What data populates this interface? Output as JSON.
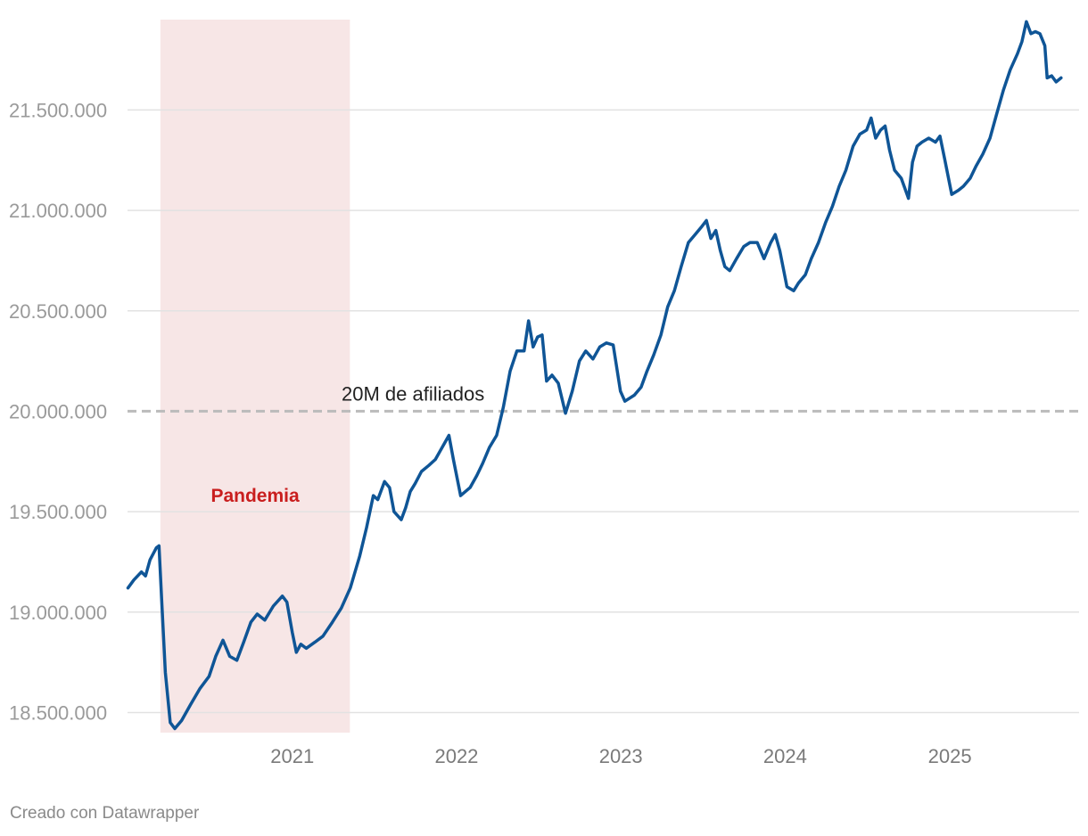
{
  "chart_data": {
    "type": "line",
    "title": "",
    "xlabel": "",
    "ylabel": "",
    "xlim": [
      "2020-01-01",
      "2025-10-15"
    ],
    "ylim": [
      18400000,
      21950000
    ],
    "y_ticks": [
      18500000,
      19000000,
      19500000,
      20000000,
      20500000,
      21000000,
      21500000
    ],
    "y_tick_labels": [
      "18.500.000",
      "19.000.000",
      "19.500.000",
      "20.000.000",
      "20.500.000",
      "21.000.000",
      "21.500.000"
    ],
    "x_ticks": [
      "2021-01-01",
      "2022-01-01",
      "2023-01-01",
      "2024-01-01",
      "2025-01-01"
    ],
    "x_tick_labels": [
      "2021",
      "2022",
      "2023",
      "2024",
      "2025"
    ],
    "grid": true,
    "shaded_region": {
      "label": "Pandemia",
      "start": "2020-03-14",
      "end": "2021-05-09",
      "color": "#f7e6e6",
      "label_color": "#c91e1e"
    },
    "reference_line": {
      "value": 20000000,
      "label": "20M de afiliados",
      "color": "#bbbbbb"
    },
    "series": [
      {
        "color": "#0f5596",
        "points": [
          [
            "2020-01-02",
            19120000
          ],
          [
            "2020-01-15",
            19160000
          ],
          [
            "2020-02-01",
            19200000
          ],
          [
            "2020-02-10",
            19180000
          ],
          [
            "2020-02-20",
            19260000
          ],
          [
            "2020-03-05",
            19320000
          ],
          [
            "2020-03-11",
            19330000
          ],
          [
            "2020-03-17",
            19050000
          ],
          [
            "2020-03-25",
            18700000
          ],
          [
            "2020-04-05",
            18450000
          ],
          [
            "2020-04-15",
            18420000
          ],
          [
            "2020-04-30",
            18460000
          ],
          [
            "2020-05-20",
            18540000
          ],
          [
            "2020-06-10",
            18620000
          ],
          [
            "2020-06-30",
            18680000
          ],
          [
            "2020-07-15",
            18780000
          ],
          [
            "2020-07-31",
            18860000
          ],
          [
            "2020-08-15",
            18780000
          ],
          [
            "2020-08-31",
            18760000
          ],
          [
            "2020-09-15",
            18850000
          ],
          [
            "2020-10-01",
            18950000
          ],
          [
            "2020-10-15",
            18990000
          ],
          [
            "2020-11-01",
            18960000
          ],
          [
            "2020-11-20",
            19030000
          ],
          [
            "2020-12-10",
            19080000
          ],
          [
            "2020-12-20",
            19050000
          ],
          [
            "2021-01-01",
            18900000
          ],
          [
            "2021-01-10",
            18800000
          ],
          [
            "2021-01-20",
            18840000
          ],
          [
            "2021-02-01",
            18820000
          ],
          [
            "2021-02-20",
            18850000
          ],
          [
            "2021-03-10",
            18880000
          ],
          [
            "2021-03-31",
            18950000
          ],
          [
            "2021-04-20",
            19020000
          ],
          [
            "2021-05-10",
            19120000
          ],
          [
            "2021-05-31",
            19280000
          ],
          [
            "2021-06-15",
            19420000
          ],
          [
            "2021-06-30",
            19580000
          ],
          [
            "2021-07-10",
            19560000
          ],
          [
            "2021-07-25",
            19650000
          ],
          [
            "2021-08-05",
            19620000
          ],
          [
            "2021-08-15",
            19500000
          ],
          [
            "2021-08-31",
            19460000
          ],
          [
            "2021-09-10",
            19520000
          ],
          [
            "2021-09-20",
            19600000
          ],
          [
            "2021-10-01",
            19640000
          ],
          [
            "2021-10-15",
            19700000
          ],
          [
            "2021-10-31",
            19730000
          ],
          [
            "2021-11-15",
            19760000
          ],
          [
            "2021-11-30",
            19820000
          ],
          [
            "2021-12-15",
            19880000
          ],
          [
            "2021-12-25",
            19760000
          ],
          [
            "2022-01-10",
            19580000
          ],
          [
            "2022-01-31",
            19620000
          ],
          [
            "2022-02-15",
            19680000
          ],
          [
            "2022-02-28",
            19740000
          ],
          [
            "2022-03-15",
            19820000
          ],
          [
            "2022-03-31",
            19880000
          ],
          [
            "2022-04-15",
            20020000
          ],
          [
            "2022-04-30",
            20200000
          ],
          [
            "2022-05-15",
            20300000
          ],
          [
            "2022-05-31",
            20300000
          ],
          [
            "2022-06-10",
            20450000
          ],
          [
            "2022-06-20",
            20320000
          ],
          [
            "2022-06-30",
            20370000
          ],
          [
            "2022-07-10",
            20380000
          ],
          [
            "2022-07-20",
            20150000
          ],
          [
            "2022-08-01",
            20180000
          ],
          [
            "2022-08-15",
            20140000
          ],
          [
            "2022-08-31",
            19990000
          ],
          [
            "2022-09-15",
            20100000
          ],
          [
            "2022-10-01",
            20250000
          ],
          [
            "2022-10-15",
            20300000
          ],
          [
            "2022-10-31",
            20260000
          ],
          [
            "2022-11-15",
            20320000
          ],
          [
            "2022-11-30",
            20340000
          ],
          [
            "2022-12-15",
            20330000
          ],
          [
            "2022-12-31",
            20100000
          ],
          [
            "2023-01-10",
            20050000
          ],
          [
            "2023-01-31",
            20080000
          ],
          [
            "2023-02-15",
            20120000
          ],
          [
            "2023-02-28",
            20200000
          ],
          [
            "2023-03-15",
            20280000
          ],
          [
            "2023-03-31",
            20380000
          ],
          [
            "2023-04-15",
            20520000
          ],
          [
            "2023-04-30",
            20600000
          ],
          [
            "2023-05-15",
            20720000
          ],
          [
            "2023-05-31",
            20840000
          ],
          [
            "2023-06-15",
            20880000
          ],
          [
            "2023-06-30",
            20920000
          ],
          [
            "2023-07-10",
            20950000
          ],
          [
            "2023-07-20",
            20860000
          ],
          [
            "2023-07-31",
            20900000
          ],
          [
            "2023-08-10",
            20800000
          ],
          [
            "2023-08-20",
            20720000
          ],
          [
            "2023-08-31",
            20700000
          ],
          [
            "2023-09-15",
            20760000
          ],
          [
            "2023-10-01",
            20820000
          ],
          [
            "2023-10-15",
            20840000
          ],
          [
            "2023-10-31",
            20840000
          ],
          [
            "2023-11-15",
            20760000
          ],
          [
            "2023-11-30",
            20840000
          ],
          [
            "2023-12-10",
            20880000
          ],
          [
            "2023-12-20",
            20800000
          ],
          [
            "2024-01-05",
            20620000
          ],
          [
            "2024-01-20",
            20600000
          ],
          [
            "2024-01-31",
            20640000
          ],
          [
            "2024-02-15",
            20680000
          ],
          [
            "2024-02-28",
            20760000
          ],
          [
            "2024-03-15",
            20840000
          ],
          [
            "2024-03-31",
            20940000
          ],
          [
            "2024-04-15",
            21020000
          ],
          [
            "2024-04-30",
            21120000
          ],
          [
            "2024-05-15",
            21200000
          ],
          [
            "2024-05-31",
            21320000
          ],
          [
            "2024-06-15",
            21380000
          ],
          [
            "2024-06-30",
            21400000
          ],
          [
            "2024-07-10",
            21460000
          ],
          [
            "2024-07-20",
            21360000
          ],
          [
            "2024-07-31",
            21400000
          ],
          [
            "2024-08-10",
            21420000
          ],
          [
            "2024-08-20",
            21300000
          ],
          [
            "2024-08-31",
            21200000
          ],
          [
            "2024-09-15",
            21160000
          ],
          [
            "2024-10-01",
            21060000
          ],
          [
            "2024-10-10",
            21240000
          ],
          [
            "2024-10-20",
            21320000
          ],
          [
            "2024-10-31",
            21340000
          ],
          [
            "2024-11-15",
            21360000
          ],
          [
            "2024-11-30",
            21340000
          ],
          [
            "2024-12-10",
            21370000
          ],
          [
            "2024-12-20",
            21260000
          ],
          [
            "2025-01-05",
            21080000
          ],
          [
            "2025-01-20",
            21100000
          ],
          [
            "2025-01-31",
            21120000
          ],
          [
            "2025-02-15",
            21160000
          ],
          [
            "2025-02-28",
            21220000
          ],
          [
            "2025-03-15",
            21280000
          ],
          [
            "2025-03-31",
            21360000
          ],
          [
            "2025-04-15",
            21480000
          ],
          [
            "2025-04-30",
            21600000
          ],
          [
            "2025-05-15",
            21700000
          ],
          [
            "2025-05-31",
            21780000
          ],
          [
            "2025-06-10",
            21840000
          ],
          [
            "2025-06-20",
            21940000
          ],
          [
            "2025-06-30",
            21880000
          ],
          [
            "2025-07-10",
            21890000
          ],
          [
            "2025-07-20",
            21880000
          ],
          [
            "2025-07-31",
            21820000
          ],
          [
            "2025-08-05",
            21660000
          ],
          [
            "2025-08-15",
            21670000
          ],
          [
            "2025-08-25",
            21640000
          ],
          [
            "2025-09-05",
            21660000
          ]
        ]
      }
    ]
  },
  "footer": {
    "credit": "Creado con Datawrapper"
  }
}
